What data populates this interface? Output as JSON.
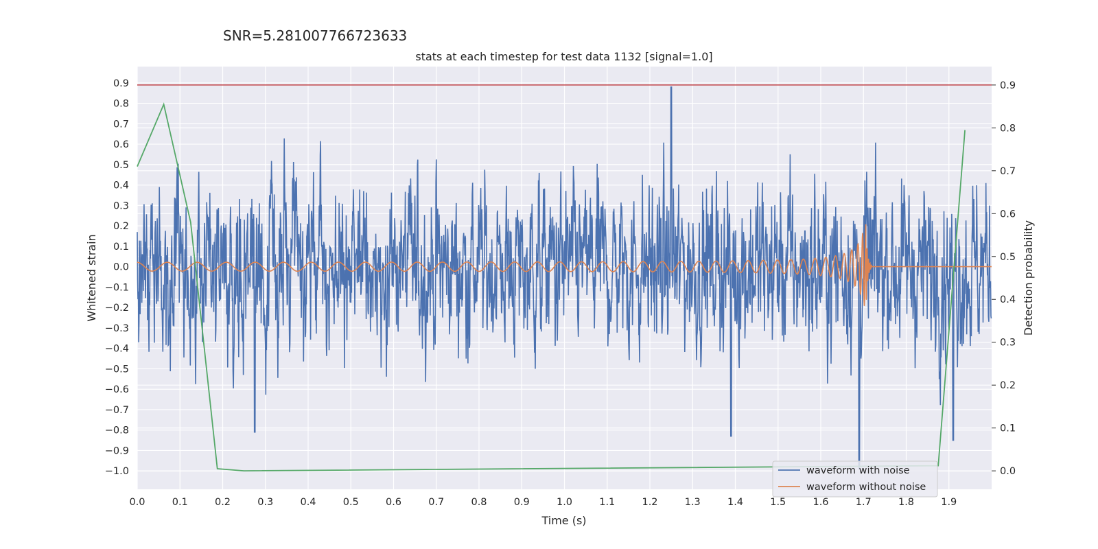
{
  "figure_text": "SNR=5.281007766723633",
  "chart_data": {
    "type": "line",
    "title": "stats at each timestep for test data 1132 [signal=1.0]",
    "xlabel": "Time (s)",
    "ylabel_left": "Whitened strain",
    "ylabel_right": "Detection probability",
    "xlim": [
      0,
      2.0
    ],
    "ylim_left": [
      -1.09,
      0.98
    ],
    "ylim_right": [
      -0.043,
      0.943
    ],
    "x_ticks": [
      "0.0",
      "0.1",
      "0.2",
      "0.3",
      "0.4",
      "0.5",
      "0.6",
      "0.7",
      "0.8",
      "0.9",
      "1.0",
      "1.1",
      "1.2",
      "1.3",
      "1.4",
      "1.5",
      "1.6",
      "1.7",
      "1.8",
      "1.9"
    ],
    "y_ticks_left": [
      "0.9",
      "0.8",
      "0.7",
      "0.6",
      "0.5",
      "0.4",
      "0.3",
      "0.2",
      "0.1",
      "0.0",
      "−0.1",
      "−0.2",
      "−0.3",
      "−0.4",
      "−0.5",
      "−0.6",
      "−0.7",
      "−0.8",
      "−0.9",
      "−1.0"
    ],
    "y_ticks_right": [
      "0.9",
      "0.8",
      "0.7",
      "0.6",
      "0.5",
      "0.4",
      "0.3",
      "0.2",
      "0.1",
      "0.0"
    ],
    "grid": true,
    "legend_position": "lower-right",
    "series": [
      {
        "name": "waveform with noise",
        "axis": "left",
        "color": "#4c72b0",
        "kind": "noise",
        "approx_amplitude_std": 0.28,
        "approx_range": [
          -0.99,
          0.88
        ],
        "notable_peaks": [
          [
            1.25,
            0.88
          ],
          [
            1.69,
            -0.99
          ],
          [
            0.275,
            -0.81
          ],
          [
            1.39,
            -0.83
          ],
          [
            1.91,
            -0.85
          ]
        ]
      },
      {
        "name": "waveform without noise",
        "axis": "left",
        "color": "#dd8452",
        "kind": "chirp",
        "f_start_hz": 14,
        "merger_time_s": 1.705,
        "amp_start": 0.02,
        "amp_peak": 0.25,
        "ringdown_end_s": 1.72
      },
      {
        "name": "",
        "axis": "right",
        "color": "#55a868",
        "kind": "probability",
        "x": [
          0.0,
          0.062,
          0.125,
          0.1875,
          0.25,
          1.875,
          1.9375
        ],
        "y": [
          0.71,
          0.855,
          0.58,
          0.005,
          0.0,
          0.012,
          0.795
        ]
      },
      {
        "name": "",
        "axis": "left",
        "color": "#c44e52",
        "kind": "threshold",
        "y": 0.89
      }
    ]
  }
}
